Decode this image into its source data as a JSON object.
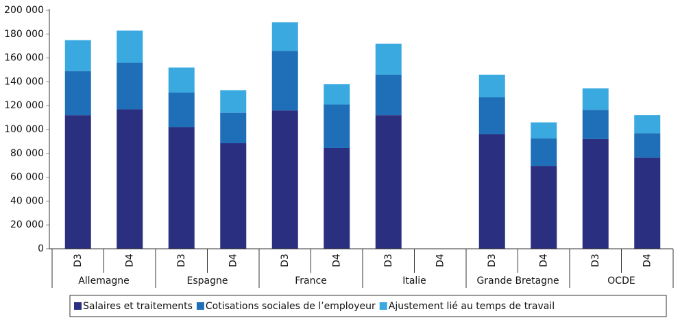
{
  "chart_data": {
    "type": "stacked-bar",
    "categories": [
      "D3",
      "D4",
      "D3",
      "D4",
      "D3",
      "D4",
      "D3",
      "D4",
      "D3",
      "D4",
      "D3",
      "D4"
    ],
    "groups": [
      "Allemagne",
      "Espagne",
      "France",
      "Italie",
      "Grande Bretagne",
      "OCDE"
    ],
    "series": [
      {
        "name": "Salaires et traitements",
        "color": "#2b2f7f",
        "values": [
          112000,
          117000,
          102000,
          88500,
          116000,
          84500,
          112000,
          null,
          96000,
          69500,
          92000,
          76500
        ]
      },
      {
        "name": "Cotisations sociales de l’employeur",
        "color": "#1f6fb8",
        "values": [
          37000,
          39000,
          29000,
          25500,
          50000,
          36500,
          34000,
          null,
          31000,
          23000,
          24500,
          20500
        ]
      },
      {
        "name": "Ajustement lié au temps de travail",
        "color": "#3aa9e0",
        "values": [
          26000,
          27000,
          21000,
          19000,
          24000,
          17000,
          26000,
          null,
          19000,
          13500,
          18000,
          15000
        ]
      }
    ],
    "ylim": [
      0,
      200000
    ],
    "yticks": [
      0,
      {
        "value": 20000,
        "label": "20 000"
      },
      {
        "value": 40000,
        "label": "40 000"
      },
      {
        "value": 60000,
        "label": "60 000"
      },
      {
        "value": 80000,
        "label": "80 000"
      },
      {
        "value": 100000,
        "label": "100 000"
      },
      {
        "value": 120000,
        "label": "120 000"
      },
      {
        "value": 140000,
        "label": "140 000"
      },
      {
        "value": 160000,
        "label": "160 000"
      },
      {
        "value": 180000,
        "label": "180 000"
      },
      {
        "value": 200000,
        "label": "200 000"
      }
    ],
    "legend": "bottom"
  }
}
